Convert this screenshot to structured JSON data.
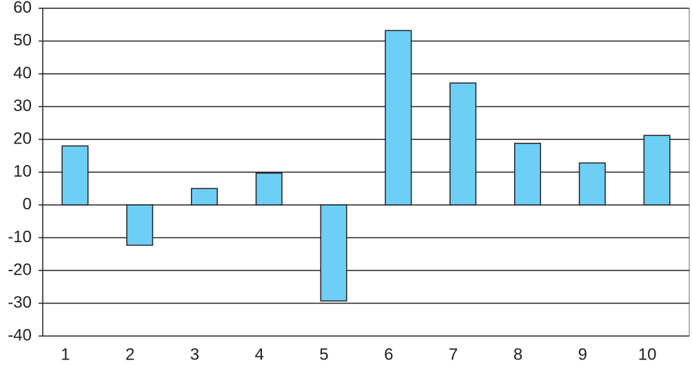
{
  "chart_data": {
    "type": "bar",
    "categories": [
      "1",
      "2",
      "3",
      "4",
      "5",
      "6",
      "7",
      "8",
      "9",
      "10"
    ],
    "values": [
      18,
      -12.3,
      5,
      9.7,
      -29.3,
      53.2,
      37.2,
      18.8,
      12.8,
      21.2
    ],
    "color": "#6dcff6",
    "ylim": [
      -40,
      60
    ],
    "yticks": [
      -40,
      -30,
      -20,
      -10,
      0,
      10,
      20,
      30,
      40,
      50,
      60
    ],
    "grid": true
  }
}
